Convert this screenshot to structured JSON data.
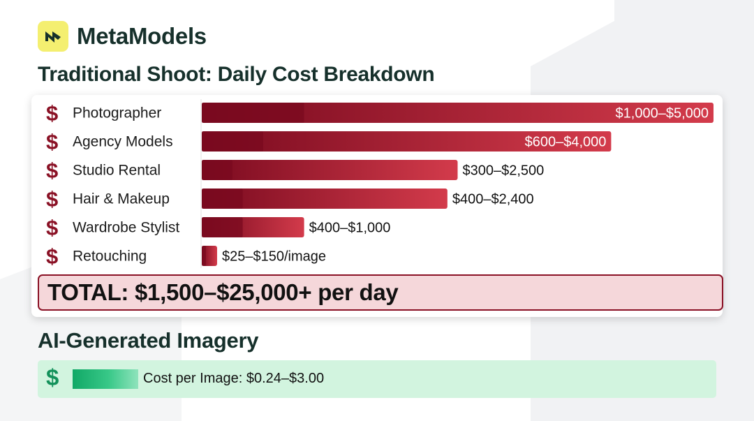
{
  "brand": {
    "name": "MetaModels",
    "logo_icon": "metamodels-logo-icon"
  },
  "colors": {
    "accent_dark": "#7a0a1f",
    "accent_light": "#d33b4b",
    "total_bg": "#f5d7da",
    "ai_green": "#13915a",
    "ai_bg": "#d2f4df",
    "logo_yellow": "#f4ef70"
  },
  "title": "Traditional Shoot: Daily Cost Breakdown",
  "chart_data": {
    "type": "bar",
    "orientation": "horizontal",
    "title": "Traditional Shoot: Daily Cost Breakdown",
    "unit": "USD",
    "categories": [
      "Photographer",
      "Agency Models",
      "Studio Rental",
      "Hair & Makeup",
      "Wardrobe Stylist",
      "Retouching"
    ],
    "low": [
      1000,
      600,
      300,
      400,
      400,
      25
    ],
    "high": [
      5000,
      4000,
      2500,
      2400,
      1000,
      150
    ],
    "labels": [
      "$1,000–$5,000",
      "$600–$4,000",
      "$300–$2,500",
      "$400–$2,400",
      "$400–$1,000",
      "$25–$150/image"
    ],
    "xlim": [
      0,
      5000
    ],
    "grid": false,
    "legend": "none",
    "row_icon": "dollar-icon"
  },
  "total": "TOTAL: $1,500–$25,000+ per day",
  "ai": {
    "title": "AI-Generated Imagery",
    "label": "Cost per Image: $0.24–$3.00",
    "icon": "dollar-icon"
  }
}
